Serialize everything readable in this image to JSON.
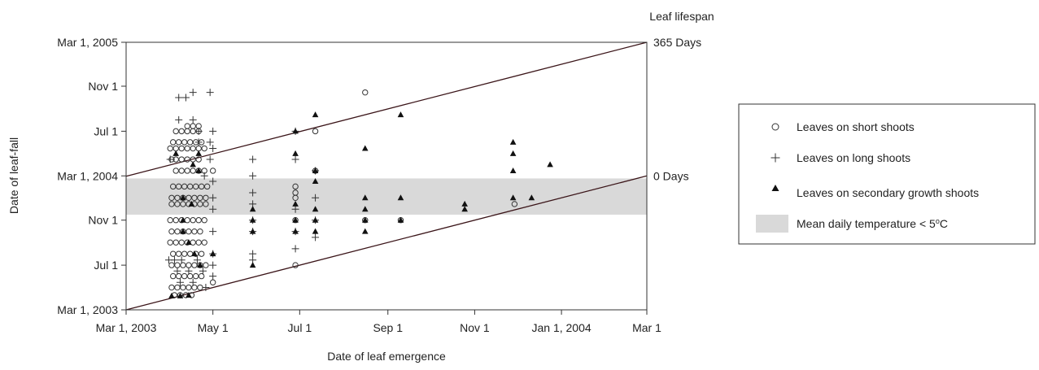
{
  "chart_data": {
    "type": "scatter",
    "title": "",
    "xlabel": "Date of leaf emergence",
    "ylabel": "Date of leaf-fall",
    "right_axis_title": "Leaf lifespan",
    "x_range": [
      "2003-03-01",
      "2004-03-01"
    ],
    "y_range": [
      "2003-03-01",
      "2005-03-01"
    ],
    "x_ticks": [
      {
        "date": "2003-03-01",
        "label": "Mar 1, 2003"
      },
      {
        "date": "2003-05-01",
        "label": "May 1"
      },
      {
        "date": "2003-07-01",
        "label": "Jul 1"
      },
      {
        "date": "2003-09-01",
        "label": "Sep 1"
      },
      {
        "date": "2003-11-01",
        "label": "Nov 1"
      },
      {
        "date": "2004-01-01",
        "label": "Jan 1, 2004"
      },
      {
        "date": "2004-03-01",
        "label": "Mar 1"
      }
    ],
    "y_ticks": [
      {
        "date": "2003-03-01",
        "label": "Mar 1, 2003"
      },
      {
        "date": "2003-07-01",
        "label": "Jul 1"
      },
      {
        "date": "2003-11-01",
        "label": "Nov 1"
      },
      {
        "date": "2004-03-01",
        "label": "Mar 1, 2004"
      },
      {
        "date": "2004-07-01",
        "label": "Jul 1"
      },
      {
        "date": "2004-11-01",
        "label": "Nov 1"
      },
      {
        "date": "2005-03-01",
        "label": "Mar 1, 2005"
      }
    ],
    "reference_lines": [
      {
        "label": "0 Days",
        "lifespan_days": 0
      },
      {
        "label": "365 Days",
        "lifespan_days": 365
      }
    ],
    "shaded_band": {
      "label": "Mean daily temperature < 5",
      "label_sup": "o",
      "label_suffix": "C",
      "y_from": "2003-11-16",
      "y_to": "2004-02-23",
      "color": "#d9d9d9"
    },
    "legend_position": "right",
    "series": [
      {
        "name": "Leaves on short shoots",
        "marker": "open-circle",
        "points": [
          [
            "2003-04-02",
            "2004-04-15"
          ],
          [
            "2003-04-05",
            "2004-04-15"
          ],
          [
            "2003-04-09",
            "2004-04-15"
          ],
          [
            "2003-04-13",
            "2004-04-15"
          ],
          [
            "2003-04-17",
            "2004-04-15"
          ],
          [
            "2003-04-21",
            "2004-04-15"
          ],
          [
            "2003-04-03",
            "2004-06-01"
          ],
          [
            "2003-04-07",
            "2004-06-01"
          ],
          [
            "2003-04-11",
            "2004-06-01"
          ],
          [
            "2003-04-15",
            "2004-06-01"
          ],
          [
            "2003-04-19",
            "2004-06-01"
          ],
          [
            "2003-04-23",
            "2004-06-01"
          ],
          [
            "2003-04-05",
            "2004-07-01"
          ],
          [
            "2003-04-09",
            "2004-07-01"
          ],
          [
            "2003-04-13",
            "2004-07-01"
          ],
          [
            "2003-04-17",
            "2004-07-01"
          ],
          [
            "2003-04-21",
            "2004-07-01"
          ],
          [
            "2003-04-01",
            "2004-05-15"
          ],
          [
            "2003-04-05",
            "2004-05-15"
          ],
          [
            "2003-04-09",
            "2004-05-15"
          ],
          [
            "2003-04-13",
            "2004-05-15"
          ],
          [
            "2003-04-17",
            "2004-05-15"
          ],
          [
            "2003-04-21",
            "2004-05-15"
          ],
          [
            "2003-04-25",
            "2004-05-15"
          ],
          [
            "2003-04-13",
            "2004-07-15"
          ],
          [
            "2003-04-17",
            "2004-07-15"
          ],
          [
            "2003-04-21",
            "2004-07-15"
          ],
          [
            "2003-04-05",
            "2004-03-15"
          ],
          [
            "2003-04-09",
            "2004-03-15"
          ],
          [
            "2003-04-13",
            "2004-03-15"
          ],
          [
            "2003-04-17",
            "2004-03-15"
          ],
          [
            "2003-04-21",
            "2004-03-15"
          ],
          [
            "2003-04-25",
            "2004-03-15"
          ],
          [
            "2003-04-03",
            "2004-02-01"
          ],
          [
            "2003-04-07",
            "2004-02-01"
          ],
          [
            "2003-04-11",
            "2004-02-01"
          ],
          [
            "2003-04-15",
            "2004-02-01"
          ],
          [
            "2003-04-19",
            "2004-02-01"
          ],
          [
            "2003-04-23",
            "2004-02-01"
          ],
          [
            "2003-04-27",
            "2004-02-01"
          ],
          [
            "2003-04-02",
            "2004-01-01"
          ],
          [
            "2003-04-06",
            "2004-01-01"
          ],
          [
            "2003-04-10",
            "2004-01-01"
          ],
          [
            "2003-04-14",
            "2004-01-01"
          ],
          [
            "2003-04-18",
            "2004-01-01"
          ],
          [
            "2003-04-22",
            "2004-01-01"
          ],
          [
            "2003-04-26",
            "2004-01-01"
          ],
          [
            "2003-04-02",
            "2003-12-15"
          ],
          [
            "2003-04-06",
            "2003-12-15"
          ],
          [
            "2003-04-10",
            "2003-12-15"
          ],
          [
            "2003-04-14",
            "2003-12-15"
          ],
          [
            "2003-04-18",
            "2003-12-15"
          ],
          [
            "2003-04-22",
            "2003-12-15"
          ],
          [
            "2003-04-26",
            "2003-12-15"
          ],
          [
            "2003-04-01",
            "2003-11-01"
          ],
          [
            "2003-04-05",
            "2003-11-01"
          ],
          [
            "2003-04-09",
            "2003-11-01"
          ],
          [
            "2003-04-13",
            "2003-11-01"
          ],
          [
            "2003-04-17",
            "2003-11-01"
          ],
          [
            "2003-04-21",
            "2003-11-01"
          ],
          [
            "2003-04-25",
            "2003-11-01"
          ],
          [
            "2003-04-02",
            "2003-10-01"
          ],
          [
            "2003-04-06",
            "2003-10-01"
          ],
          [
            "2003-04-10",
            "2003-10-01"
          ],
          [
            "2003-04-14",
            "2003-10-01"
          ],
          [
            "2003-04-18",
            "2003-10-01"
          ],
          [
            "2003-04-22",
            "2003-10-01"
          ],
          [
            "2003-04-01",
            "2003-09-01"
          ],
          [
            "2003-04-05",
            "2003-09-01"
          ],
          [
            "2003-04-09",
            "2003-09-01"
          ],
          [
            "2003-04-13",
            "2003-09-01"
          ],
          [
            "2003-04-17",
            "2003-09-01"
          ],
          [
            "2003-04-21",
            "2003-09-01"
          ],
          [
            "2003-04-25",
            "2003-09-01"
          ],
          [
            "2003-04-03",
            "2003-08-01"
          ],
          [
            "2003-04-07",
            "2003-08-01"
          ],
          [
            "2003-04-11",
            "2003-08-01"
          ],
          [
            "2003-04-15",
            "2003-08-01"
          ],
          [
            "2003-04-19",
            "2003-08-01"
          ],
          [
            "2003-04-23",
            "2003-08-01"
          ],
          [
            "2003-04-02",
            "2003-07-01"
          ],
          [
            "2003-04-06",
            "2003-07-01"
          ],
          [
            "2003-04-10",
            "2003-07-01"
          ],
          [
            "2003-04-14",
            "2003-07-01"
          ],
          [
            "2003-04-18",
            "2003-07-01"
          ],
          [
            "2003-04-22",
            "2003-07-01"
          ],
          [
            "2003-04-26",
            "2003-07-01"
          ],
          [
            "2003-04-03",
            "2003-06-01"
          ],
          [
            "2003-04-07",
            "2003-06-01"
          ],
          [
            "2003-04-11",
            "2003-06-01"
          ],
          [
            "2003-04-15",
            "2003-06-01"
          ],
          [
            "2003-04-19",
            "2003-06-01"
          ],
          [
            "2003-04-23",
            "2003-06-01"
          ],
          [
            "2003-04-02",
            "2003-05-01"
          ],
          [
            "2003-04-06",
            "2003-05-01"
          ],
          [
            "2003-04-10",
            "2003-05-01"
          ],
          [
            "2003-04-14",
            "2003-05-01"
          ],
          [
            "2003-04-18",
            "2003-05-01"
          ],
          [
            "2003-04-22",
            "2003-05-01"
          ],
          [
            "2003-04-04",
            "2003-04-10"
          ],
          [
            "2003-04-08",
            "2003-04-10"
          ],
          [
            "2003-04-12",
            "2003-04-10"
          ],
          [
            "2003-04-16",
            "2003-04-10"
          ],
          [
            "2003-05-01",
            "2004-03-15"
          ],
          [
            "2003-05-01",
            "2003-05-15"
          ],
          [
            "2003-06-28",
            "2003-07-01"
          ],
          [
            "2003-06-28",
            "2004-01-01"
          ],
          [
            "2003-06-28",
            "2004-01-15"
          ],
          [
            "2003-06-28",
            "2004-02-01"
          ],
          [
            "2003-06-28",
            "2003-11-01"
          ],
          [
            "2003-07-12",
            "2004-07-01"
          ],
          [
            "2003-07-12",
            "2004-03-15"
          ],
          [
            "2003-08-16",
            "2004-10-15"
          ],
          [
            "2003-08-16",
            "2003-11-01"
          ],
          [
            "2003-09-10",
            "2003-11-01"
          ],
          [
            "2003-11-29",
            "2003-12-15"
          ]
        ]
      },
      {
        "name": "Leaves on long shoots",
        "marker": "plus",
        "points": [
          [
            "2003-04-07",
            "2004-10-01"
          ],
          [
            "2003-04-12",
            "2004-10-01"
          ],
          [
            "2003-04-17",
            "2004-10-15"
          ],
          [
            "2003-04-29",
            "2004-10-15"
          ],
          [
            "2003-04-07",
            "2004-08-01"
          ],
          [
            "2003-04-17",
            "2004-08-01"
          ],
          [
            "2003-04-01",
            "2004-04-15"
          ],
          [
            "2003-04-21",
            "2004-06-01"
          ],
          [
            "2003-04-29",
            "2004-06-01"
          ],
          [
            "2003-04-21",
            "2004-07-01"
          ],
          [
            "2003-05-01",
            "2004-07-01"
          ],
          [
            "2003-04-29",
            "2004-04-15"
          ],
          [
            "2003-05-01",
            "2004-05-15"
          ],
          [
            "2003-04-25",
            "2004-03-01"
          ],
          [
            "2003-05-01",
            "2004-02-15"
          ],
          [
            "2003-05-01",
            "2004-01-01"
          ],
          [
            "2003-05-01",
            "2003-12-01"
          ],
          [
            "2003-05-01",
            "2003-10-01"
          ],
          [
            "2003-05-01",
            "2003-08-01"
          ],
          [
            "2003-05-01",
            "2003-07-01"
          ],
          [
            "2003-05-01",
            "2003-06-01"
          ],
          [
            "2003-04-26",
            "2003-05-01"
          ],
          [
            "2003-03-31",
            "2003-07-15"
          ],
          [
            "2003-04-04",
            "2003-07-15"
          ],
          [
            "2003-04-09",
            "2003-07-15"
          ],
          [
            "2003-04-20",
            "2003-07-15"
          ],
          [
            "2003-04-06",
            "2003-06-15"
          ],
          [
            "2003-04-14",
            "2003-06-15"
          ],
          [
            "2003-04-24",
            "2003-06-15"
          ],
          [
            "2003-04-08",
            "2003-05-15"
          ],
          [
            "2003-04-17",
            "2003-05-15"
          ],
          [
            "2003-05-29",
            "2004-04-15"
          ],
          [
            "2003-05-29",
            "2004-03-01"
          ],
          [
            "2003-05-29",
            "2004-01-15"
          ],
          [
            "2003-05-29",
            "2003-12-15"
          ],
          [
            "2003-05-29",
            "2003-11-01"
          ],
          [
            "2003-05-29",
            "2003-10-01"
          ],
          [
            "2003-05-29",
            "2003-08-01"
          ],
          [
            "2003-05-29",
            "2003-07-15"
          ],
          [
            "2003-06-28",
            "2004-07-01"
          ],
          [
            "2003-06-28",
            "2004-04-15"
          ],
          [
            "2003-06-28",
            "2003-12-01"
          ],
          [
            "2003-06-28",
            "2003-10-01"
          ],
          [
            "2003-06-28",
            "2003-08-15"
          ],
          [
            "2003-07-12",
            "2004-03-15"
          ],
          [
            "2003-07-12",
            "2004-01-01"
          ],
          [
            "2003-07-12",
            "2003-11-01"
          ],
          [
            "2003-07-12",
            "2003-09-15"
          ]
        ]
      },
      {
        "name": "Leaves on secondary growth shoots",
        "marker": "filled-triangle",
        "points": [
          [
            "2003-04-02",
            "2003-04-08"
          ],
          [
            "2003-04-08",
            "2003-04-08"
          ],
          [
            "2003-04-14",
            "2003-04-10"
          ],
          [
            "2003-04-05",
            "2004-05-01"
          ],
          [
            "2003-04-21",
            "2004-05-01"
          ],
          [
            "2003-04-17",
            "2004-04-01"
          ],
          [
            "2003-04-21",
            "2004-03-15"
          ],
          [
            "2003-04-10",
            "2003-11-01"
          ],
          [
            "2003-04-10",
            "2004-01-01"
          ],
          [
            "2003-04-16",
            "2003-12-15"
          ],
          [
            "2003-04-10",
            "2003-10-01"
          ],
          [
            "2003-04-14",
            "2003-09-01"
          ],
          [
            "2003-04-18",
            "2003-08-01"
          ],
          [
            "2003-04-22",
            "2003-07-01"
          ],
          [
            "2003-05-01",
            "2003-08-01"
          ],
          [
            "2003-05-29",
            "2003-12-01"
          ],
          [
            "2003-05-29",
            "2003-10-01"
          ],
          [
            "2003-05-29",
            "2003-07-01"
          ],
          [
            "2003-05-29",
            "2003-11-01"
          ],
          [
            "2003-06-28",
            "2004-07-01"
          ],
          [
            "2003-06-28",
            "2004-05-01"
          ],
          [
            "2003-06-28",
            "2003-12-15"
          ],
          [
            "2003-06-28",
            "2003-10-01"
          ],
          [
            "2003-06-28",
            "2003-11-01"
          ],
          [
            "2003-07-12",
            "2004-08-15"
          ],
          [
            "2003-07-12",
            "2004-03-15"
          ],
          [
            "2003-07-12",
            "2004-02-15"
          ],
          [
            "2003-07-12",
            "2003-12-01"
          ],
          [
            "2003-07-12",
            "2003-10-01"
          ],
          [
            "2003-07-12",
            "2003-11-01"
          ],
          [
            "2003-08-16",
            "2004-05-15"
          ],
          [
            "2003-08-16",
            "2004-01-01"
          ],
          [
            "2003-08-16",
            "2003-12-01"
          ],
          [
            "2003-08-16",
            "2003-11-01"
          ],
          [
            "2003-08-16",
            "2003-10-01"
          ],
          [
            "2003-09-10",
            "2004-08-15"
          ],
          [
            "2003-09-10",
            "2004-01-01"
          ],
          [
            "2003-09-10",
            "2003-11-01"
          ],
          [
            "2003-10-25",
            "2003-12-15"
          ],
          [
            "2003-10-25",
            "2003-12-01"
          ],
          [
            "2003-11-28",
            "2004-06-01"
          ],
          [
            "2003-11-28",
            "2004-05-01"
          ],
          [
            "2003-11-28",
            "2004-03-15"
          ],
          [
            "2003-11-28",
            "2004-01-01"
          ],
          [
            "2003-12-11",
            "2004-01-01"
          ],
          [
            "2003-12-24",
            "2004-04-01"
          ]
        ]
      }
    ]
  }
}
